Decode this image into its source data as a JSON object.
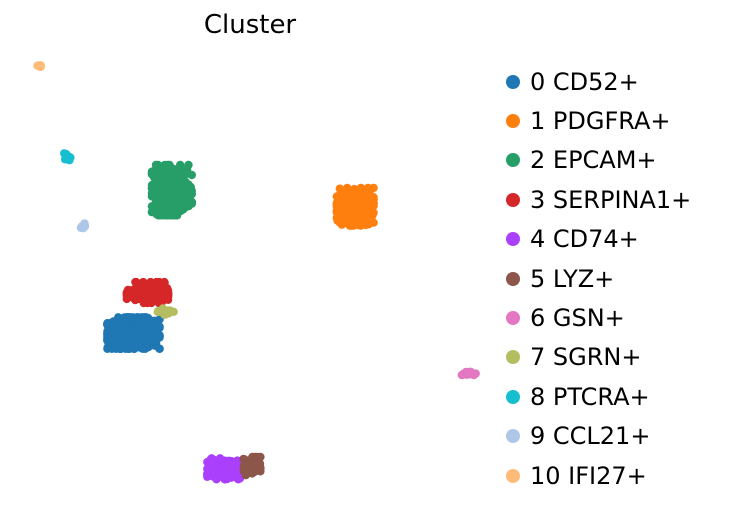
{
  "chart_data": {
    "type": "scatter",
    "title": "Cluster",
    "xlabel": "",
    "ylabel": "",
    "grid": false,
    "axes_visible": false,
    "legend_position": "right",
    "series": [
      {
        "name": "0 CD52+",
        "color": "#1f77b4",
        "center": [
          0.16,
          0.34
        ],
        "spread": [
          0.034,
          0.03
        ],
        "n": 520
      },
      {
        "name": "1 PDGFRA+",
        "color": "#ff7f0e",
        "center": [
          0.478,
          0.605
        ],
        "spread": [
          0.024,
          0.036
        ],
        "n": 320
      },
      {
        "name": "2 EPCAM+",
        "color": "#279e68",
        "center": [
          0.215,
          0.64
        ],
        "spread": [
          0.026,
          0.048
        ],
        "n": 330
      },
      {
        "name": "3 SERPINA1+",
        "color": "#d62728",
        "center": [
          0.18,
          0.425
        ],
        "spread": [
          0.027,
          0.02
        ],
        "n": 200
      },
      {
        "name": "4 CD74+",
        "color": "#aa40fc",
        "center": [
          0.29,
          0.055
        ],
        "spread": [
          0.022,
          0.02
        ],
        "n": 130
      },
      {
        "name": "5 LYZ+",
        "color": "#8c564b",
        "center": [
          0.33,
          0.06
        ],
        "spread": [
          0.011,
          0.018
        ],
        "n": 80
      },
      {
        "name": "6 GSN+",
        "color": "#e377c2",
        "center": [
          0.64,
          0.255
        ],
        "spread": [
          0.01,
          0.004
        ],
        "n": 20
      },
      {
        "name": "7 SGRN+",
        "color": "#b5bd61",
        "center": [
          0.208,
          0.385
        ],
        "spread": [
          0.012,
          0.006
        ],
        "n": 22
      },
      {
        "name": "8 PTCRA+",
        "color": "#17becf",
        "center": [
          0.065,
          0.71
        ],
        "spread": [
          0.004,
          0.007
        ],
        "n": 10
      },
      {
        "name": "9 CCL21+",
        "color": "#aec7e8",
        "center": [
          0.088,
          0.565
        ],
        "spread": [
          0.003,
          0.005
        ],
        "n": 8
      },
      {
        "name": "10 IFI27+",
        "color": "#ffbb78",
        "center": [
          0.025,
          0.9
        ],
        "spread": [
          0.003,
          0.003
        ],
        "n": 6
      }
    ]
  }
}
